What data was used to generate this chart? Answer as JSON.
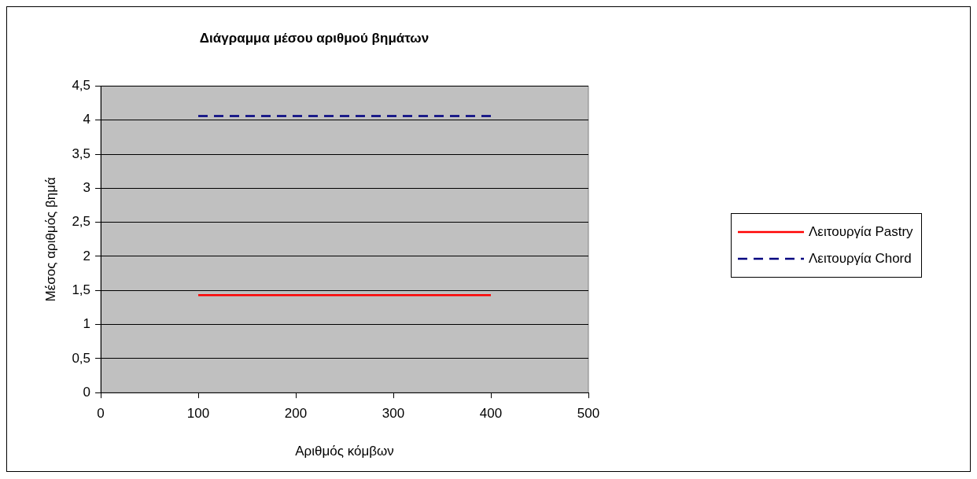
{
  "chart_data": {
    "type": "line",
    "title": "Διάγραμμα μέσου αριθμού βημάτων",
    "xlabel": "Αριθμός κόμβων",
    "ylabel": "Μέσος αριθμός βημά",
    "x": [
      100,
      400
    ],
    "series": [
      {
        "name": "Λειτουργία Pastry",
        "color": "#ff0000",
        "values": [
          1.43,
          1.43
        ],
        "line_style": "solid"
      },
      {
        "name": "Λειτουργία Chord",
        "color": "#000080",
        "values": [
          4.06,
          4.06
        ],
        "line_style": "dashed"
      }
    ],
    "xlim": [
      0,
      500
    ],
    "xticks": [
      0,
      100,
      200,
      300,
      400,
      500
    ],
    "ylim": [
      0,
      4.5
    ],
    "yticks": [
      {
        "value": 0,
        "label": "0"
      },
      {
        "value": 0.5,
        "label": "0,5"
      },
      {
        "value": 1,
        "label": "1"
      },
      {
        "value": 1.5,
        "label": "1,5"
      },
      {
        "value": 2,
        "label": "2"
      },
      {
        "value": 2.5,
        "label": "2,5"
      },
      {
        "value": 3,
        "label": "3"
      },
      {
        "value": 3.5,
        "label": "3,5"
      },
      {
        "value": 4,
        "label": "4"
      },
      {
        "value": 4.5,
        "label": "4,5"
      }
    ],
    "grid": "y",
    "legend": "right",
    "marker": "none"
  }
}
